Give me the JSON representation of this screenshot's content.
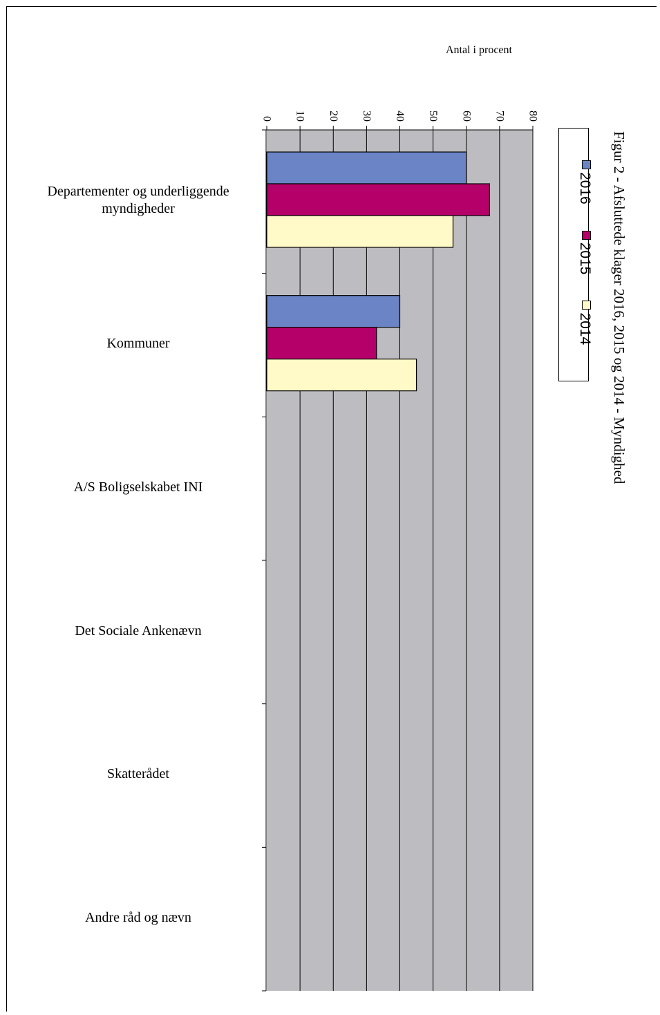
{
  "chart_data": {
    "type": "bar",
    "orientation": "horizontal",
    "title": "Figur 2 - Afsluttede klager 2016, 2015 og 2014 - Myndighed",
    "xlabel": "Antal i procent",
    "ylabel": "",
    "xlim": [
      0,
      80
    ],
    "ticks": [
      "0",
      "10",
      "20",
      "30",
      "40",
      "50",
      "60",
      "70",
      "80"
    ],
    "categories": [
      "Departementer og underliggende myndigheder",
      "Kommuner",
      "A/S Boligselskabet INI",
      "Det Sociale Ankenævn",
      "Skatterådet",
      "Andre råd og nævn"
    ],
    "series": [
      {
        "name": "2016",
        "color": "#6a84c6",
        "values": [
          60,
          40,
          0,
          0,
          0,
          0
        ]
      },
      {
        "name": "2015",
        "color": "#b5006a",
        "values": [
          67,
          33,
          0,
          0,
          0,
          0
        ]
      },
      {
        "name": "2014",
        "color": "#fffac8",
        "values": [
          56,
          45,
          0,
          0,
          0,
          0
        ]
      }
    ],
    "grid": true,
    "plot_background": "#bdbdc1",
    "legend_position": "right"
  }
}
